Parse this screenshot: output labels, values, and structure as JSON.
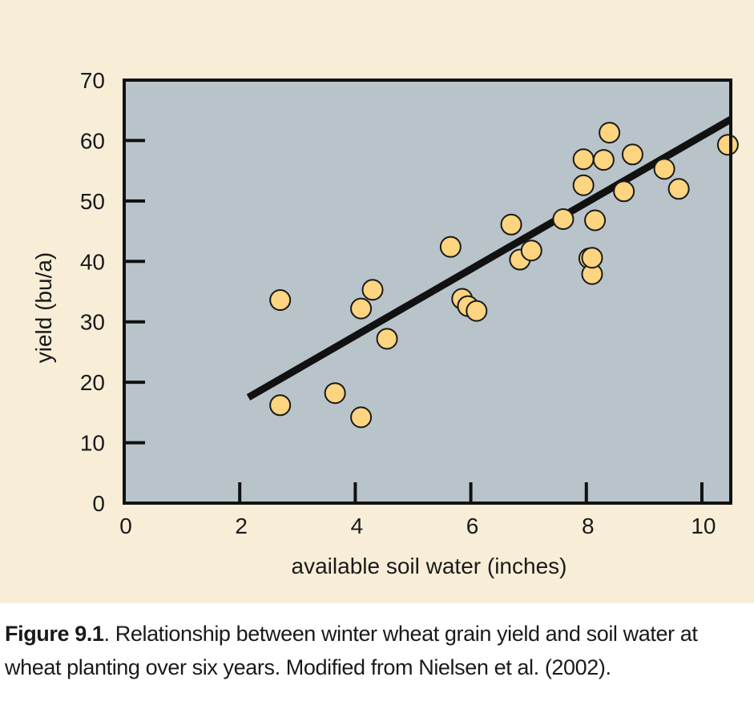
{
  "chart_data": {
    "type": "scatter",
    "xlabel": "available soil water (inches)",
    "ylabel": "yield (bu/a)",
    "xlim": [
      0,
      10.5
    ],
    "ylim": [
      0,
      70
    ],
    "xticks": [
      0,
      2,
      4,
      6,
      8,
      10
    ],
    "yticks": [
      0,
      10,
      20,
      30,
      40,
      50,
      60,
      70
    ],
    "grid": false,
    "colors": {
      "panel_background": "#f8eed8",
      "plot_background": "#b8c4ca",
      "marker_fill": "#fdd47f",
      "marker_edge": "#1a1a1a",
      "line": "#111111"
    },
    "points": [
      {
        "x": 2.7,
        "y": 33.6
      },
      {
        "x": 2.7,
        "y": 16.2
      },
      {
        "x": 3.65,
        "y": 18.2
      },
      {
        "x": 4.1,
        "y": 32.2
      },
      {
        "x": 4.1,
        "y": 14.2
      },
      {
        "x": 4.3,
        "y": 35.3
      },
      {
        "x": 4.55,
        "y": 27.2
      },
      {
        "x": 5.65,
        "y": 42.4
      },
      {
        "x": 5.85,
        "y": 33.8
      },
      {
        "x": 5.95,
        "y": 32.6
      },
      {
        "x": 6.1,
        "y": 31.8
      },
      {
        "x": 6.7,
        "y": 46.1
      },
      {
        "x": 6.85,
        "y": 40.3
      },
      {
        "x": 7.05,
        "y": 41.8
      },
      {
        "x": 7.6,
        "y": 47.0
      },
      {
        "x": 7.95,
        "y": 52.6
      },
      {
        "x": 7.95,
        "y": 56.9
      },
      {
        "x": 8.05,
        "y": 40.5
      },
      {
        "x": 8.1,
        "y": 37.9
      },
      {
        "x": 8.1,
        "y": 40.6
      },
      {
        "x": 8.15,
        "y": 46.8
      },
      {
        "x": 8.3,
        "y": 56.8
      },
      {
        "x": 8.4,
        "y": 61.3
      },
      {
        "x": 8.65,
        "y": 51.6
      },
      {
        "x": 8.8,
        "y": 57.7
      },
      {
        "x": 9.35,
        "y": 55.3
      },
      {
        "x": 9.6,
        "y": 52.0
      },
      {
        "x": 10.45,
        "y": 59.3
      }
    ],
    "fit_line": {
      "x": [
        2.15,
        10.5
      ],
      "y": [
        17.5,
        63.5
      ]
    }
  },
  "caption": {
    "label": "Figure 9.1",
    "text": ". Relationship between winter wheat grain yield and soil water at wheat planting over six years. Modified from Nielsen et al. (2002)."
  }
}
